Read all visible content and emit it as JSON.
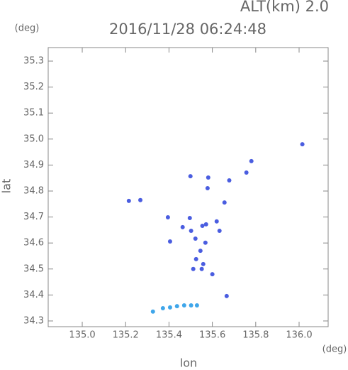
{
  "chart_data": {
    "type": "scatter",
    "title": "2016/11/28 06:24:48",
    "subtitle": "ALT(km) 2.0",
    "x_label": "lon",
    "y_label": "lat",
    "x_unit": "(deg)",
    "y_unit": "(deg)",
    "xlim": [
      134.843,
      136.134
    ],
    "ylim": [
      34.278,
      35.352
    ],
    "xticks": [
      {
        "value": 135,
        "label": "135.0"
      },
      135.2,
      135.4,
      135.6,
      135.8,
      {
        "value": 136,
        "label": "136.0"
      }
    ],
    "yticks": [
      34.3,
      34.4,
      34.5,
      34.6,
      34.7,
      34.8,
      34.9,
      {
        "value": 35,
        "label": "35.0"
      },
      35.1,
      35.2,
      35.3
    ],
    "series": [
      {
        "color": "#4a5de0",
        "x": [
          135.215,
          135.268,
          135.395,
          135.463,
          135.496,
          135.502,
          135.554,
          135.571,
          135.62,
          135.633,
          135.522,
          135.568,
          135.545,
          135.525,
          135.558,
          135.512,
          135.551,
          135.6,
          135.581,
          135.578,
          135.757,
          135.78,
          136.015,
          135.405,
          135.499,
          135.656,
          135.678,
          135.666
        ],
        "values": [
          34.762,
          34.765,
          34.699,
          34.661,
          34.696,
          34.647,
          34.666,
          34.672,
          34.683,
          34.647,
          34.617,
          34.601,
          34.57,
          34.538,
          34.519,
          34.5,
          34.5,
          34.48,
          34.852,
          34.811,
          34.871,
          34.915,
          34.98,
          34.606,
          34.857,
          34.756,
          34.841,
          34.396
        ]
      },
      {
        "color": "#3fa6ea",
        "x": [
          135.326,
          135.372,
          135.405,
          135.437,
          135.47,
          135.502,
          135.529
        ],
        "values": [
          34.336,
          34.349,
          34.352,
          34.357,
          34.36,
          34.36,
          34.36
        ]
      }
    ]
  }
}
